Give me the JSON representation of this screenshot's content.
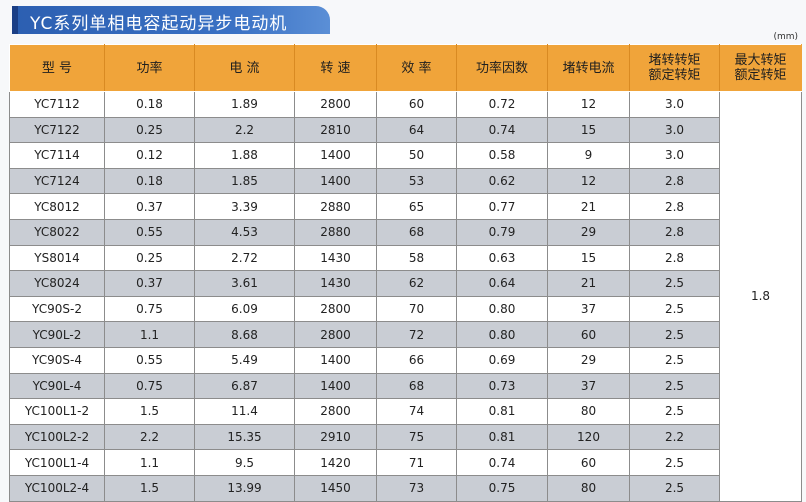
{
  "title": "YC系列单相电容起动异步电动机",
  "unit": "(mm)",
  "columns": [
    "型 号",
    "功率",
    "电 流",
    "转 速",
    "效 率",
    "功率因数",
    "堵转电流",
    "堵转转矩\n额定转矩",
    "最大转矩\n额定转矩"
  ],
  "merged_value": "1.8",
  "rows": [
    [
      "YC7112",
      "0.18",
      "1.89",
      "2800",
      "60",
      "0.72",
      "12",
      "3.0"
    ],
    [
      "YC7122",
      "0.25",
      "2.2",
      "2810",
      "64",
      "0.74",
      "15",
      "3.0"
    ],
    [
      "YC7114",
      "0.12",
      "1.88",
      "1400",
      "50",
      "0.58",
      "9",
      "3.0"
    ],
    [
      "YC7124",
      "0.18",
      "1.85",
      "1400",
      "53",
      "0.62",
      "12",
      "2.8"
    ],
    [
      "YC8012",
      "0.37",
      "3.39",
      "2880",
      "65",
      "0.77",
      "21",
      "2.8"
    ],
    [
      "YC8022",
      "0.55",
      "4.53",
      "2880",
      "68",
      "0.79",
      "29",
      "2.8"
    ],
    [
      "YS8014",
      "0.25",
      "2.72",
      "1430",
      "58",
      "0.63",
      "15",
      "2.8"
    ],
    [
      "YC8024",
      "0.37",
      "3.61",
      "1430",
      "62",
      "0.64",
      "21",
      "2.5"
    ],
    [
      "YC90S-2",
      "0.75",
      "6.09",
      "2800",
      "70",
      "0.80",
      "37",
      "2.5"
    ],
    [
      "YC90L-2",
      "1.1",
      "8.68",
      "2800",
      "72",
      "0.80",
      "60",
      "2.5"
    ],
    [
      "YC90S-4",
      "0.55",
      "5.49",
      "1400",
      "66",
      "0.69",
      "29",
      "2.5"
    ],
    [
      "YC90L-4",
      "0.75",
      "6.87",
      "1400",
      "68",
      "0.73",
      "37",
      "2.5"
    ],
    [
      "YC100L1-2",
      "1.5",
      "11.4",
      "2800",
      "74",
      "0.81",
      "80",
      "2.5"
    ],
    [
      "YC100L2-2",
      "2.2",
      "15.35",
      "2910",
      "75",
      "0.81",
      "120",
      "2.2"
    ],
    [
      "YC100L1-4",
      "1.1",
      "9.5",
      "1420",
      "71",
      "0.74",
      "60",
      "2.5"
    ],
    [
      "YC100L2-4",
      "1.5",
      "13.99",
      "1450",
      "73",
      "0.75",
      "80",
      "2.5"
    ]
  ]
}
